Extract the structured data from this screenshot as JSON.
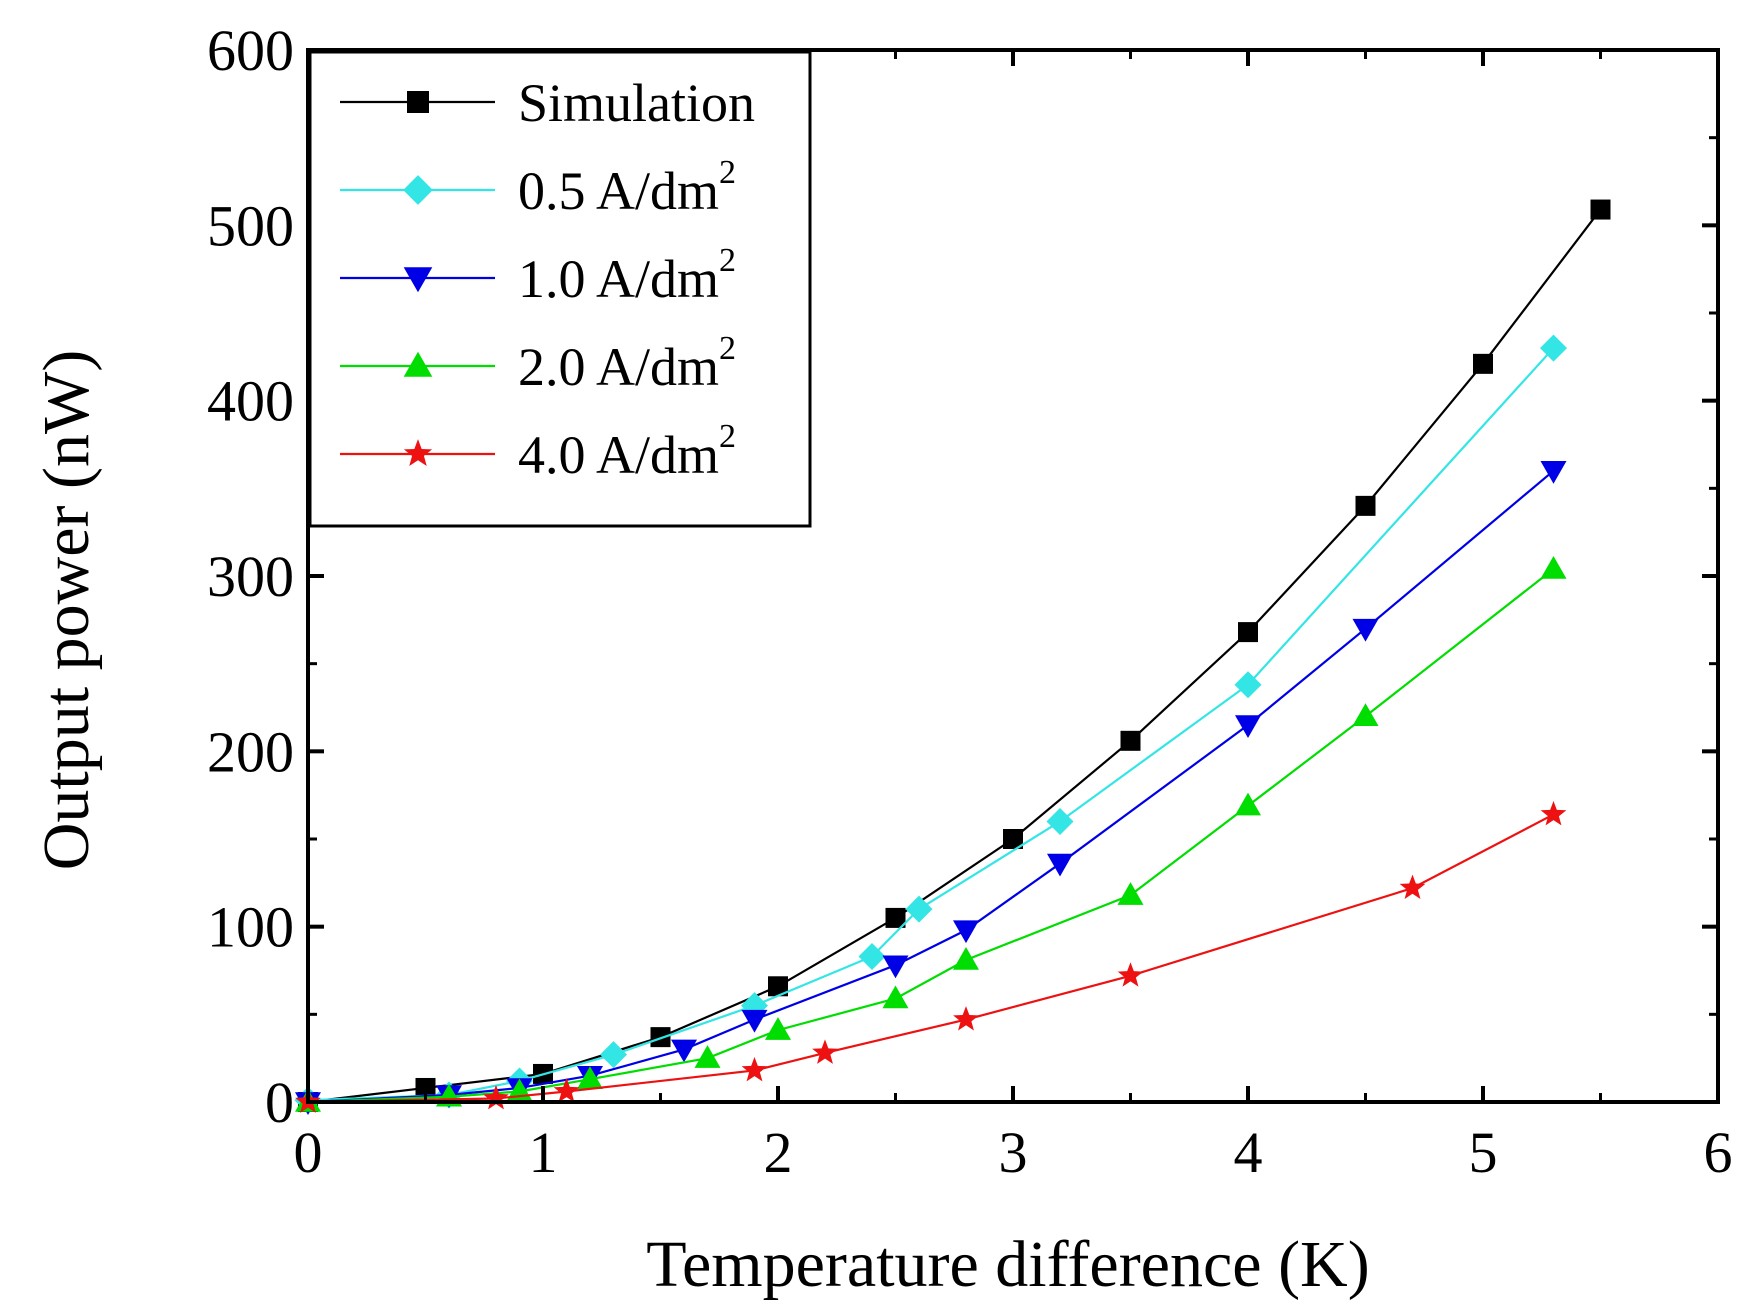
{
  "chart_data": {
    "type": "line",
    "title": "",
    "xlabel": "Temperature difference (K)",
    "ylabel": "Output power (nW)",
    "xlim": [
      0,
      6
    ],
    "ylim": [
      0,
      600
    ],
    "x_ticks": [
      0,
      1,
      2,
      3,
      4,
      5,
      6
    ],
    "y_ticks": [
      0,
      100,
      200,
      300,
      400,
      500,
      600
    ],
    "grid": false,
    "legend_position": "top-left",
    "series": [
      {
        "name": "Simulation",
        "label_main": "Simulation",
        "label_sup": "",
        "color": "#000000",
        "marker": "square",
        "points": [
          [
            0,
            0
          ],
          [
            0.5,
            8
          ],
          [
            1.0,
            16
          ],
          [
            1.5,
            37
          ],
          [
            2.0,
            66
          ],
          [
            2.5,
            105
          ],
          [
            3.0,
            150
          ],
          [
            3.5,
            206
          ],
          [
            4.0,
            268
          ],
          [
            4.5,
            340
          ],
          [
            5.0,
            421
          ],
          [
            5.5,
            509
          ]
        ]
      },
      {
        "name": "0.5 A/dm2",
        "label_main": "0.5 A/dm",
        "label_sup": "2",
        "color": "#33e5e5",
        "marker": "diamond",
        "points": [
          [
            0,
            1
          ],
          [
            0.6,
            4
          ],
          [
            0.9,
            12
          ],
          [
            1.3,
            27
          ],
          [
            1.9,
            55
          ],
          [
            2.4,
            83
          ],
          [
            2.6,
            110
          ],
          [
            3.2,
            160
          ],
          [
            4.0,
            238
          ],
          [
            5.3,
            430
          ]
        ]
      },
      {
        "name": "1.0 A/dm2",
        "label_main": "1.0 A/dm",
        "label_sup": "2",
        "color": "#0000e6",
        "marker": "triangle-down",
        "points": [
          [
            0,
            0
          ],
          [
            0.6,
            4
          ],
          [
            0.9,
            8
          ],
          [
            1.2,
            15
          ],
          [
            1.6,
            30
          ],
          [
            1.9,
            47
          ],
          [
            2.5,
            78
          ],
          [
            2.8,
            98
          ],
          [
            3.2,
            136
          ],
          [
            4.0,
            215
          ],
          [
            4.5,
            270
          ],
          [
            5.3,
            360
          ]
        ]
      },
      {
        "name": "2.0 A/dm2",
        "label_main": "2.0 A/dm",
        "label_sup": "2",
        "color": "#00dd00",
        "marker": "triangle-up",
        "points": [
          [
            0,
            0
          ],
          [
            0.6,
            3
          ],
          [
            0.9,
            6
          ],
          [
            1.2,
            13
          ],
          [
            1.7,
            25
          ],
          [
            2.0,
            41
          ],
          [
            2.5,
            59
          ],
          [
            2.8,
            81
          ],
          [
            3.5,
            118
          ],
          [
            4.0,
            169
          ],
          [
            4.5,
            220
          ],
          [
            5.3,
            304
          ]
        ]
      },
      {
        "name": "4.0 A/dm2",
        "label_main": "4.0 A/dm",
        "label_sup": "2",
        "color": "#ee1111",
        "marker": "star",
        "points": [
          [
            0,
            0
          ],
          [
            0.8,
            2
          ],
          [
            1.1,
            6
          ],
          [
            1.9,
            18
          ],
          [
            2.2,
            28
          ],
          [
            2.8,
            47
          ],
          [
            3.5,
            72
          ],
          [
            4.7,
            122
          ],
          [
            5.3,
            164
          ]
        ]
      }
    ]
  }
}
